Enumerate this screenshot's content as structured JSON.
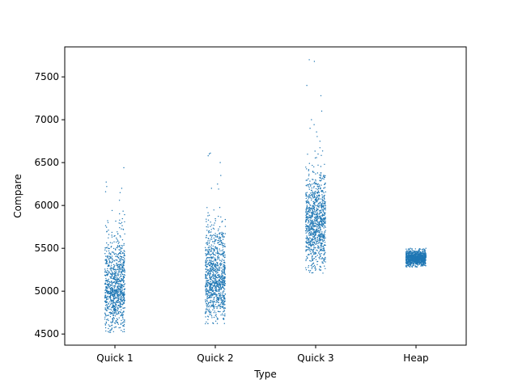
{
  "chart_data": {
    "type": "scatter",
    "subtype": "strip",
    "title": "",
    "xlabel": "Type",
    "ylabel": "Compare",
    "categories": [
      "Quick 1",
      "Quick 2",
      "Quick 3",
      "Heap"
    ],
    "ylim": [
      4370,
      7850
    ],
    "yticks": [
      4500,
      5000,
      5500,
      6000,
      6500,
      7000,
      7500
    ],
    "grid": false,
    "legend": "none",
    "point_color": "#1f77b4",
    "jitter": 0.1,
    "series": [
      {
        "category": "Quick 1",
        "count": 1000,
        "median": 5030,
        "q1": 4860,
        "q3": 5250,
        "min": 4520,
        "max": 6440,
        "extremes": [
          4520,
          4540,
          6150,
          6160,
          6200,
          6220,
          6440
        ]
      },
      {
        "category": "Quick 2",
        "count": 1000,
        "median": 5130,
        "q1": 4960,
        "q3": 5340,
        "min": 4620,
        "max": 6610,
        "extremes": [
          4620,
          4650,
          6200,
          6250,
          6350,
          6500,
          6580,
          6600,
          6610
        ]
      },
      {
        "category": "Quick 3",
        "count": 1000,
        "median": 5780,
        "q1": 5600,
        "q3": 6000,
        "min": 5210,
        "max": 7700,
        "extremes": [
          5210,
          5250,
          6900,
          7000,
          7100,
          7280,
          7400,
          7680,
          7700
        ]
      },
      {
        "category": "Heap",
        "count": 1000,
        "median": 5385,
        "q1": 5355,
        "q3": 5415,
        "min": 5280,
        "max": 5500,
        "extremes": [
          5280,
          5300,
          5470,
          5490,
          5500
        ]
      }
    ]
  }
}
